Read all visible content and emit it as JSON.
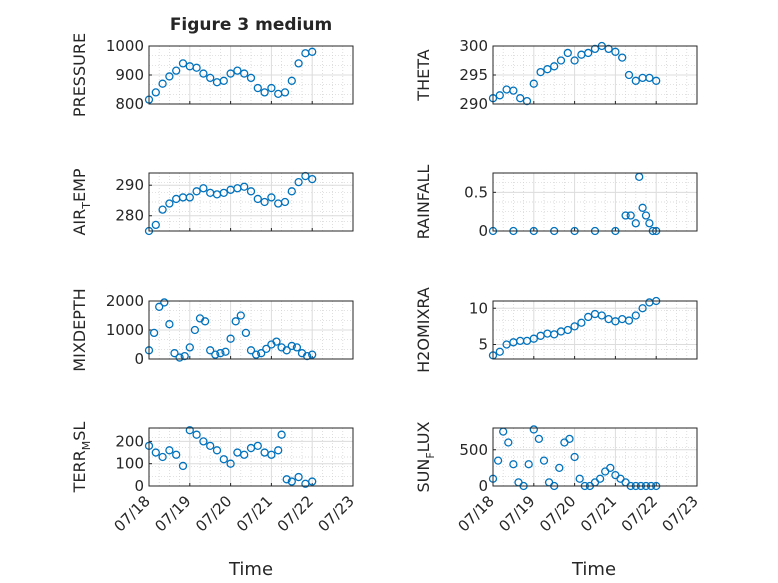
{
  "figure": {
    "title": "Figure 3 medium",
    "xlabel": "Time",
    "x_ticks": [
      "07/18",
      "07/19",
      "07/20",
      "07/21",
      "07/22",
      "07/23"
    ]
  },
  "chart_data": [
    {
      "type": "scatter",
      "ylabel": "PRESSURE",
      "ylim": [
        800,
        1000
      ],
      "yticks": [
        "800",
        "900",
        "1000"
      ],
      "grid": true,
      "marker": "open-circle",
      "color": "#0072BD",
      "x": [
        "07/18 00:00",
        "07/18 04:00",
        "07/18 08:00",
        "07/18 12:00",
        "07/18 16:00",
        "07/18 20:00",
        "07/19 00:00",
        "07/19 04:00",
        "07/19 08:00",
        "07/19 12:00",
        "07/19 16:00",
        "07/19 20:00",
        "07/20 00:00",
        "07/20 04:00",
        "07/20 08:00",
        "07/20 12:00",
        "07/20 16:00",
        "07/20 20:00",
        "07/21 00:00",
        "07/21 04:00",
        "07/21 08:00",
        "07/21 12:00",
        "07/21 16:00",
        "07/21 20:00",
        "07/22 00:00"
      ],
      "y": [
        815,
        840,
        870,
        895,
        915,
        940,
        930,
        925,
        905,
        890,
        875,
        880,
        905,
        915,
        905,
        890,
        855,
        840,
        855,
        835,
        840,
        880,
        940,
        975,
        980
      ]
    },
    {
      "type": "scatter",
      "ylabel": "THETA",
      "ylim": [
        290,
        300
      ],
      "yticks": [
        "290",
        "295",
        "300"
      ],
      "grid": true,
      "marker": "open-circle",
      "color": "#0072BD",
      "x": [
        "07/18 00:00",
        "07/18 04:00",
        "07/18 08:00",
        "07/18 12:00",
        "07/18 16:00",
        "07/18 20:00",
        "07/19 00:00",
        "07/19 04:00",
        "07/19 08:00",
        "07/19 12:00",
        "07/19 16:00",
        "07/19 20:00",
        "07/20 00:00",
        "07/20 04:00",
        "07/20 08:00",
        "07/20 12:00",
        "07/20 16:00",
        "07/20 20:00",
        "07/21 00:00",
        "07/21 04:00",
        "07/21 08:00",
        "07/21 12:00",
        "07/21 16:00",
        "07/21 20:00",
        "07/22 00:00"
      ],
      "y": [
        291,
        291.5,
        292.5,
        292.3,
        291,
        290.5,
        293.5,
        295.5,
        296,
        296.5,
        297.5,
        298.8,
        297.5,
        298.5,
        298.8,
        299.5,
        300,
        299.5,
        299,
        298,
        295,
        294,
        294.5,
        294.5,
        294
      ]
    },
    {
      "type": "scatter",
      "ylabel": "AIR_TEMP",
      "ylim": [
        275,
        294
      ],
      "yticks": [
        "280",
        "290"
      ],
      "grid": true,
      "marker": "open-circle",
      "color": "#0072BD",
      "x": [
        "07/18 00:00",
        "07/18 04:00",
        "07/18 08:00",
        "07/18 12:00",
        "07/18 16:00",
        "07/18 20:00",
        "07/19 00:00",
        "07/19 04:00",
        "07/19 08:00",
        "07/19 12:00",
        "07/19 16:00",
        "07/19 20:00",
        "07/20 00:00",
        "07/20 04:00",
        "07/20 08:00",
        "07/20 12:00",
        "07/20 16:00",
        "07/20 20:00",
        "07/21 00:00",
        "07/21 04:00",
        "07/21 08:00",
        "07/21 12:00",
        "07/21 16:00",
        "07/21 20:00",
        "07/22 00:00"
      ],
      "y": [
        275,
        277,
        282,
        284,
        285.5,
        286,
        286,
        288,
        289,
        287.5,
        287,
        287.5,
        288.5,
        289,
        289.5,
        288,
        285.5,
        284.5,
        286,
        284,
        284.5,
        288,
        291,
        293,
        292
      ]
    },
    {
      "type": "scatter",
      "ylabel": "RAINFALL",
      "ylim": [
        0,
        0.75
      ],
      "yticks": [
        "0",
        "0.5"
      ],
      "grid": true,
      "marker": "open-circle",
      "color": "#0072BD",
      "x": [
        "07/18 00:00",
        "07/18 12:00",
        "07/19 00:00",
        "07/19 12:00",
        "07/20 00:00",
        "07/20 12:00",
        "07/21 00:00",
        "07/21 06:00",
        "07/21 09:00",
        "07/21 12:00",
        "07/21 14:00",
        "07/21 16:00",
        "07/21 18:00",
        "07/21 20:00",
        "07/21 22:00",
        "07/22 00:00"
      ],
      "y": [
        0,
        0,
        0,
        0,
        0,
        0,
        0,
        0.2,
        0.2,
        0.1,
        0.7,
        0.3,
        0.2,
        0.1,
        0,
        0
      ]
    },
    {
      "type": "scatter",
      "ylabel": "MIXDEPTH",
      "ylim": [
        0,
        2000
      ],
      "yticks": [
        "0",
        "1000",
        "2000"
      ],
      "grid": true,
      "marker": "open-circle",
      "color": "#0072BD",
      "x": [
        "07/18 00:00",
        "07/18 03:00",
        "07/18 06:00",
        "07/18 09:00",
        "07/18 12:00",
        "07/18 15:00",
        "07/18 18:00",
        "07/18 21:00",
        "07/19 00:00",
        "07/19 03:00",
        "07/19 06:00",
        "07/19 09:00",
        "07/19 12:00",
        "07/19 15:00",
        "07/19 18:00",
        "07/19 21:00",
        "07/20 00:00",
        "07/20 03:00",
        "07/20 06:00",
        "07/20 09:00",
        "07/20 12:00",
        "07/20 15:00",
        "07/20 18:00",
        "07/20 21:00",
        "07/21 00:00",
        "07/21 03:00",
        "07/21 06:00",
        "07/21 09:00",
        "07/21 12:00",
        "07/21 15:00",
        "07/21 18:00",
        "07/21 21:00",
        "07/22 00:00"
      ],
      "y": [
        300,
        900,
        1800,
        1950,
        1200,
        200,
        50,
        100,
        400,
        1000,
        1400,
        1300,
        300,
        150,
        200,
        250,
        700,
        1300,
        1500,
        900,
        300,
        150,
        200,
        350,
        500,
        600,
        400,
        300,
        450,
        400,
        200,
        100,
        150
      ]
    },
    {
      "type": "scatter",
      "ylabel": "H2OMIXRA",
      "ylim": [
        3,
        11
      ],
      "yticks": [
        "5",
        "10"
      ],
      "grid": true,
      "marker": "open-circle",
      "color": "#0072BD",
      "x": [
        "07/18 00:00",
        "07/18 04:00",
        "07/18 08:00",
        "07/18 12:00",
        "07/18 16:00",
        "07/18 20:00",
        "07/19 00:00",
        "07/19 04:00",
        "07/19 08:00",
        "07/19 12:00",
        "07/19 16:00",
        "07/19 20:00",
        "07/20 00:00",
        "07/20 04:00",
        "07/20 08:00",
        "07/20 12:00",
        "07/20 16:00",
        "07/20 20:00",
        "07/21 00:00",
        "07/21 04:00",
        "07/21 08:00",
        "07/21 12:00",
        "07/21 16:00",
        "07/21 20:00",
        "07/22 00:00"
      ],
      "y": [
        3.5,
        4,
        5,
        5.3,
        5.5,
        5.5,
        5.8,
        6.2,
        6.5,
        6.4,
        6.8,
        7,
        7.5,
        8,
        8.8,
        9.2,
        9,
        8.5,
        8.2,
        8.5,
        8.3,
        9,
        10,
        10.8,
        11
      ]
    },
    {
      "type": "scatter",
      "ylabel": "TERR_MSL",
      "ylim": [
        0,
        260
      ],
      "yticks": [
        "0",
        "100",
        "200"
      ],
      "grid": true,
      "marker": "open-circle",
      "color": "#0072BD",
      "x": [
        "07/18 00:00",
        "07/18 04:00",
        "07/18 08:00",
        "07/18 12:00",
        "07/18 16:00",
        "07/18 20:00",
        "07/19 00:00",
        "07/19 04:00",
        "07/19 08:00",
        "07/19 12:00",
        "07/19 16:00",
        "07/19 20:00",
        "07/20 00:00",
        "07/20 04:00",
        "07/20 08:00",
        "07/20 12:00",
        "07/20 16:00",
        "07/20 20:00",
        "07/21 00:00",
        "07/21 04:00",
        "07/21 06:00",
        "07/21 09:00",
        "07/21 12:00",
        "07/21 16:00",
        "07/21 20:00",
        "07/22 00:00"
      ],
      "y": [
        180,
        150,
        130,
        160,
        140,
        90,
        250,
        230,
        200,
        180,
        160,
        120,
        100,
        150,
        140,
        170,
        180,
        150,
        140,
        160,
        230,
        30,
        20,
        40,
        10,
        20
      ]
    },
    {
      "type": "scatter",
      "ylabel": "SUN_FLUX",
      "ylim": [
        0,
        800
      ],
      "yticks": [
        "0",
        "500"
      ],
      "grid": true,
      "marker": "open-circle",
      "color": "#0072BD",
      "x": [
        "07/18 00:00",
        "07/18 03:00",
        "07/18 06:00",
        "07/18 09:00",
        "07/18 12:00",
        "07/18 15:00",
        "07/18 18:00",
        "07/18 21:00",
        "07/19 00:00",
        "07/19 03:00",
        "07/19 06:00",
        "07/19 09:00",
        "07/19 12:00",
        "07/19 15:00",
        "07/19 18:00",
        "07/19 21:00",
        "07/20 00:00",
        "07/20 03:00",
        "07/20 06:00",
        "07/20 09:00",
        "07/20 12:00",
        "07/20 15:00",
        "07/20 18:00",
        "07/20 21:00",
        "07/21 00:00",
        "07/21 03:00",
        "07/21 06:00",
        "07/21 09:00",
        "07/21 12:00",
        "07/21 15:00",
        "07/21 18:00",
        "07/21 21:00",
        "07/22 00:00"
      ],
      "y": [
        100,
        350,
        750,
        600,
        300,
        50,
        0,
        300,
        780,
        650,
        350,
        50,
        0,
        250,
        600,
        650,
        400,
        100,
        0,
        0,
        50,
        100,
        200,
        250,
        150,
        100,
        50,
        0,
        0,
        0,
        0,
        0,
        0
      ]
    }
  ]
}
